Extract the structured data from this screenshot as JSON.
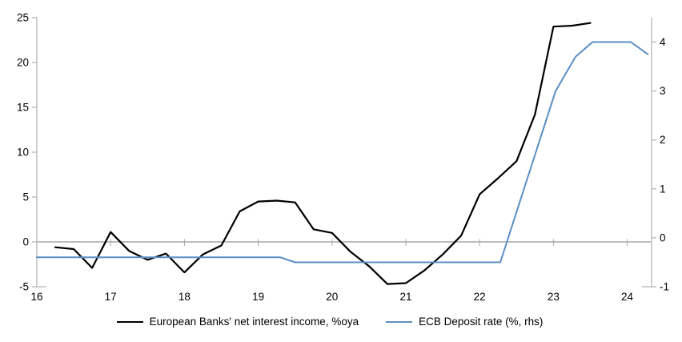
{
  "chart_data": {
    "type": "line",
    "title": "",
    "xlabel": "",
    "ylabel_left": "",
    "ylabel_right": "",
    "legend_position": "bottom",
    "grid": "zero-line-only",
    "colors": {
      "axis": "#BFBFBF",
      "zero_line": "#A6A6A6",
      "text": "#000000",
      "nii_line": "#000000",
      "ecb_line": "#5B8EC4"
    },
    "x_axis": {
      "ticks": [
        "16",
        "17",
        "18",
        "19",
        "20",
        "21",
        "22",
        "23",
        "24"
      ],
      "range": [
        16,
        24.33
      ]
    },
    "y_left": {
      "ticks": [
        25,
        20,
        15,
        10,
        5,
        0,
        -5
      ],
      "range": [
        -5,
        25
      ]
    },
    "y_right": {
      "ticks": [
        4,
        3,
        2,
        1,
        0,
        -1
      ],
      "range": [
        -1,
        4.5
      ]
    },
    "series": [
      {
        "name": "European Banks' net interest income, %oya",
        "axis": "left",
        "color": "#000000",
        "line_width": 2.2,
        "x": [
          16.25,
          16.5,
          16.75,
          17.0,
          17.25,
          17.5,
          17.75,
          18.0,
          18.25,
          18.5,
          18.75,
          19.0,
          19.25,
          19.5,
          19.75,
          20.0,
          20.25,
          20.5,
          20.75,
          21.0,
          21.25,
          21.5,
          21.75,
          22.0,
          22.25,
          22.5,
          22.75,
          23.0,
          23.25,
          23.5
        ],
        "y": [
          -0.6,
          -0.8,
          -2.9,
          1.1,
          -1.0,
          -2.0,
          -1.3,
          -3.4,
          -1.4,
          -0.4,
          3.4,
          4.5,
          4.6,
          4.4,
          1.4,
          1.0,
          -1.1,
          -2.7,
          -4.7,
          -4.6,
          -3.2,
          -1.4,
          0.7,
          5.3,
          7.1,
          9.0,
          14.2,
          24.0,
          24.1,
          24.4
        ]
      },
      {
        "name": "ECB Deposit rate (%, rhs)",
        "axis": "right",
        "color": "#5B8EC4",
        "line_width": 2,
        "x": [
          16.0,
          19.3,
          19.5,
          22.28,
          23.03,
          23.3,
          23.53,
          24.05,
          24.28
        ],
        "y": [
          -0.4,
          -0.4,
          -0.5,
          -0.5,
          3.0,
          3.7,
          4.0,
          4.0,
          3.75
        ]
      }
    ]
  }
}
